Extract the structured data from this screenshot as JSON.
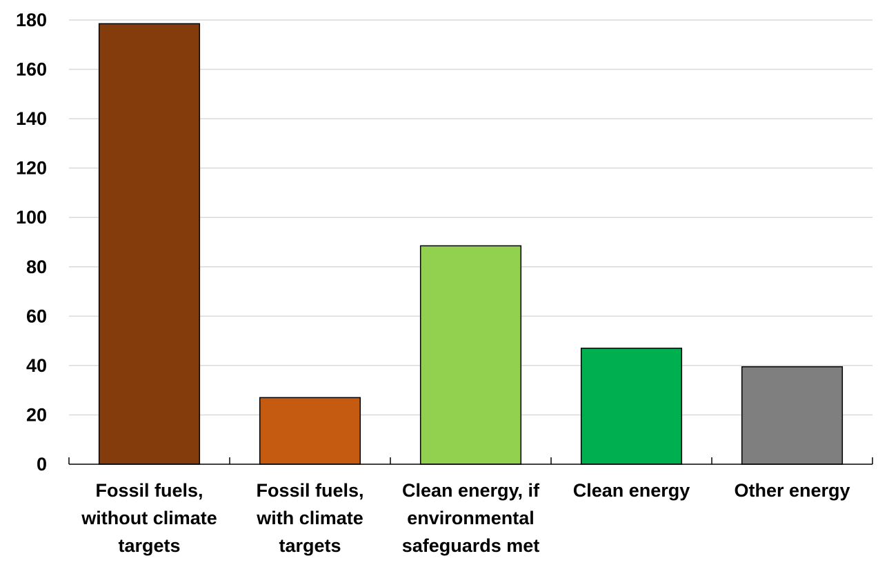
{
  "chart_data": {
    "type": "bar",
    "categories": [
      [
        "Fossil fuels,",
        "without climate",
        "targets"
      ],
      [
        "Fossil fuels,",
        "with climate",
        "targets"
      ],
      [
        "Clean energy, if",
        "environmental",
        "safeguards met"
      ],
      [
        "Clean energy"
      ],
      [
        "Other energy"
      ]
    ],
    "values": [
      178.5,
      27,
      88.5,
      47,
      39.5
    ],
    "bar_colors": [
      "#843C0C",
      "#C55A11",
      "#92D050",
      "#00B050",
      "#7F7F7F"
    ],
    "yticks": [
      0,
      20,
      40,
      60,
      80,
      100,
      120,
      140,
      160,
      180
    ],
    "ylim": [
      0,
      180
    ],
    "title": "",
    "xlabel": "",
    "ylabel": "",
    "grid": true,
    "legend": "none"
  }
}
